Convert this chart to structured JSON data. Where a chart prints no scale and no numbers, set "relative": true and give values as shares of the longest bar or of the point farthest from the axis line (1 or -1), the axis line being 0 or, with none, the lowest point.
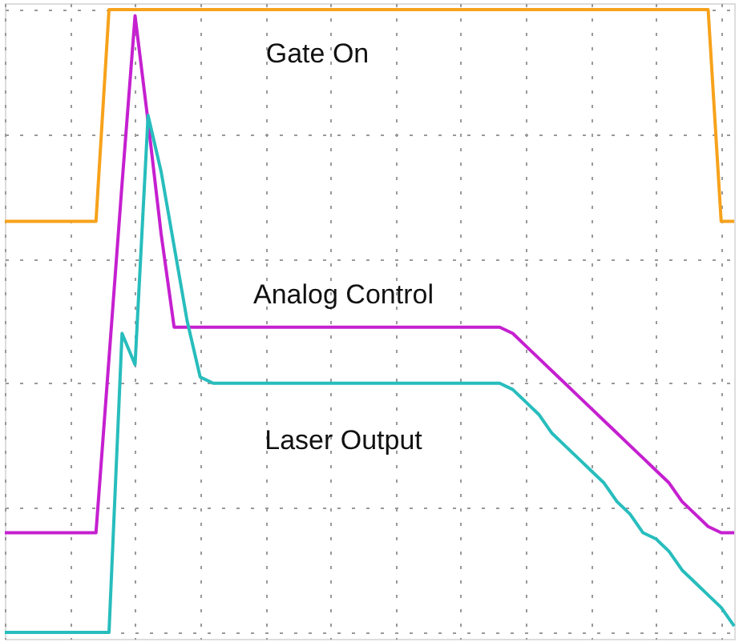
{
  "chart_data": {
    "type": "line",
    "relative": true,
    "grid": true,
    "legend": false,
    "marker": "none",
    "line_style": "solid",
    "categories": [
      null,
      null,
      null,
      null,
      null,
      null,
      null,
      null,
      null,
      null,
      null,
      null,
      null,
      null,
      null,
      null,
      null,
      null,
      null,
      null,
      null,
      null,
      null,
      null,
      null,
      null,
      null,
      null,
      null,
      null,
      null,
      null,
      null,
      null,
      null,
      null,
      null,
      null,
      null,
      null,
      null,
      null,
      null,
      null,
      null,
      null,
      null,
      null,
      null,
      null,
      null,
      null,
      null,
      null,
      null,
      null,
      null
    ],
    "series": [
      {
        "name": "Gate On",
        "color": "#f7a21b",
        "values": [
          0.66,
          0.66,
          0.66,
          0.66,
          0.66,
          0.66,
          0.66,
          0.66,
          1,
          1,
          1,
          1,
          1,
          1,
          1,
          1,
          1,
          1,
          1,
          1,
          1,
          1,
          1,
          1,
          1,
          1,
          1,
          1,
          1,
          1,
          1,
          1,
          1,
          1,
          1,
          1,
          1,
          1,
          1,
          1,
          1,
          1,
          1,
          1,
          1,
          1,
          1,
          1,
          1,
          1,
          1,
          1,
          1,
          1,
          1,
          0.66,
          0.66
        ]
      },
      {
        "name": "Analog Control",
        "color": "#c520d0",
        "values": [
          0.16,
          0.16,
          0.16,
          0.16,
          0.16,
          0.16,
          0.16,
          0.16,
          0.44,
          0.72,
          0.99,
          0.82,
          0.64,
          0.49,
          0.49,
          0.49,
          0.49,
          0.49,
          0.49,
          0.49,
          0.49,
          0.49,
          0.49,
          0.49,
          0.49,
          0.49,
          0.49,
          0.49,
          0.49,
          0.49,
          0.49,
          0.49,
          0.49,
          0.49,
          0.49,
          0.49,
          0.49,
          0.49,
          0.49,
          0.48,
          0.46,
          0.44,
          0.42,
          0.4,
          0.38,
          0.36,
          0.34,
          0.32,
          0.3,
          0.28,
          0.26,
          0.24,
          0.21,
          0.19,
          0.17,
          0.16,
          0.16
        ]
      },
      {
        "name": "Laser Output",
        "color": "#28bdbd",
        "values": [
          0,
          0,
          0,
          0,
          0,
          0,
          0,
          0,
          0,
          0.48,
          0.43,
          0.83,
          0.74,
          0.62,
          0.5,
          0.41,
          0.4,
          0.4,
          0.4,
          0.4,
          0.4,
          0.4,
          0.4,
          0.4,
          0.4,
          0.4,
          0.4,
          0.4,
          0.4,
          0.4,
          0.4,
          0.4,
          0.4,
          0.4,
          0.4,
          0.4,
          0.4,
          0.4,
          0.4,
          0.39,
          0.37,
          0.35,
          0.32,
          0.3,
          0.28,
          0.26,
          0.24,
          0.21,
          0.19,
          0.16,
          0.15,
          0.13,
          0.1,
          0.08,
          0.06,
          0.04,
          0.01
        ]
      }
    ]
  }
}
